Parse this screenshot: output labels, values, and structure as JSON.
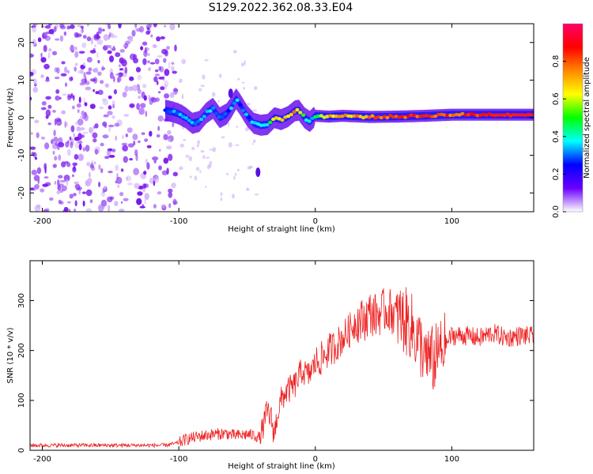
{
  "figure_title": "S129.2022.362.08.33.E04",
  "chart_data": [
    {
      "type": "heatmap",
      "panel": "spectrogram",
      "xlabel": "Height of straight line (km)",
      "ylabel": "Frequency (Hz)",
      "xlim": [
        -209,
        160
      ],
      "ylim": [
        -25,
        25
      ],
      "x_ticks": [
        "-200",
        "-100",
        "0",
        "100"
      ],
      "x_tick_values": [
        -200,
        -100,
        0,
        100
      ],
      "y_ticks": [
        "-20",
        "-10",
        "0",
        "10",
        "20"
      ],
      "y_tick_values": [
        -20,
        -10,
        0,
        10,
        20
      ],
      "colorbar": {
        "label": "Normalized spectral amplitude",
        "range": [
          0,
          1
        ],
        "ticks": [
          "0.0",
          "0.2",
          "0.4",
          "0.6",
          "0.8"
        ],
        "tick_values": [
          0,
          0.2,
          0.4,
          0.6,
          0.8
        ],
        "colormap": [
          "#ffffff",
          "#6a00ff",
          "#0000ff",
          "#00ffff",
          "#00ff00",
          "#ffff00",
          "#ff8800",
          "#ff0000",
          "#ff0066"
        ]
      },
      "noise_region_x": [
        -209,
        -102
      ],
      "ridge": {
        "x": [
          -110,
          -105,
          -100,
          -95,
          -90,
          -85,
          -80,
          -75,
          -70,
          -65,
          -62,
          -58,
          -55,
          -50,
          -45,
          -40,
          -35,
          -30,
          -25,
          -20,
          -15,
          -12,
          -8,
          -4,
          0,
          10,
          20,
          40,
          60,
          80,
          100,
          120,
          140,
          160
        ],
        "y": [
          2.0,
          1.6,
          1.0,
          0.0,
          -1.5,
          -1.0,
          1.2,
          2.5,
          0.0,
          1.0,
          2.5,
          5.0,
          3.5,
          0.5,
          -1.5,
          -2.0,
          -1.8,
          0.0,
          -0.5,
          0.3,
          1.8,
          2.0,
          0.0,
          -1.0,
          0.5,
          0.3,
          0.5,
          0.2,
          0.3,
          0.5,
          0.8,
          0.8,
          0.8,
          0.8
        ],
        "amplitude": [
          0.3,
          0.3,
          0.3,
          0.3,
          0.3,
          0.3,
          0.3,
          0.3,
          0.3,
          0.3,
          0.3,
          0.3,
          0.3,
          0.3,
          0.3,
          0.35,
          0.4,
          0.7,
          0.7,
          0.7,
          0.75,
          0.7,
          0.4,
          0.4,
          0.4,
          0.7,
          0.7,
          0.75,
          0.8,
          0.8,
          0.8,
          0.85,
          0.9,
          0.95
        ]
      },
      "isolated_features": [
        {
          "x": -42,
          "y": -14.5
        },
        {
          "x": -62,
          "y": 6.5
        }
      ]
    },
    {
      "type": "line",
      "panel": "snr",
      "xlabel": "Height of straight line (km)",
      "ylabel": "SNR (10 * v/v)",
      "xlim": [
        -209,
        160
      ],
      "ylim": [
        0,
        380
      ],
      "x_ticks": [
        "-200",
        "-100",
        "0",
        "100"
      ],
      "x_tick_values": [
        -200,
        -100,
        0,
        100
      ],
      "y_ticks": [
        "0",
        "100",
        "200",
        "300"
      ],
      "y_tick_values": [
        0,
        100,
        200,
        300
      ],
      "color": "#ee2222",
      "series": [
        {
          "x": [
            -209,
            -190,
            -170,
            -150,
            -130,
            -110,
            -100,
            -95,
            -90,
            -85,
            -80,
            -75,
            -70,
            -65,
            -60,
            -55,
            -50,
            -45,
            -40,
            -38,
            -35,
            -32,
            -30,
            -28,
            -25,
            -22,
            -20,
            -15,
            -10,
            -5,
            0,
            5,
            10,
            15,
            20,
            25,
            30,
            35,
            40,
            45,
            50,
            55,
            60,
            65,
            70,
            75,
            80,
            85,
            90,
            95,
            100,
            110,
            120,
            130,
            140,
            150,
            160
          ],
          "values": [
            10,
            10,
            10,
            10,
            10,
            10,
            15,
            22,
            25,
            28,
            30,
            32,
            33,
            34,
            30,
            30,
            32,
            30,
            25,
            50,
            80,
            60,
            30,
            70,
            100,
            115,
            120,
            130,
            160,
            150,
            175,
            185,
            200,
            210,
            225,
            240,
            260,
            260,
            275,
            270,
            280,
            280,
            270,
            260,
            250,
            220,
            200,
            180,
            190,
            210,
            230,
            230,
            225,
            235,
            225,
            230,
            228
          ]
        }
      ]
    }
  ]
}
